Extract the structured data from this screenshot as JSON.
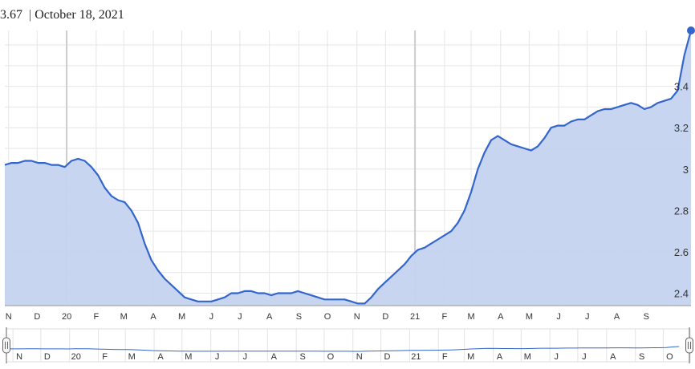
{
  "header": {
    "value_text": "3.67",
    "date_text": "October 18, 2021"
  },
  "colors": {
    "line": "#3366cc",
    "fill": "#c4d3f0",
    "grid": "#e6e6e6",
    "major_grid": "#cccccc"
  },
  "chart_data": {
    "type": "area",
    "x_unit": "weeks",
    "ylim": [
      2.34,
      3.67
    ],
    "y_ticks": [
      2.4,
      2.6,
      2.8,
      3,
      3.2,
      3.4
    ],
    "y_tick_labels": [
      "2.4",
      "2.6",
      "2.8",
      "3",
      "3.2",
      "3.4"
    ],
    "x_tick_labels": [
      "N",
      "D",
      "20",
      "F",
      "M",
      "A",
      "M",
      "J",
      "J",
      "A",
      "S",
      "O",
      "N",
      "D",
      "21",
      "F",
      "M",
      "A",
      "M",
      "J",
      "J",
      "A",
      "S"
    ],
    "navigator_tick_labels": [
      "N",
      "D",
      "20",
      "F",
      "M",
      "A",
      "M",
      "J",
      "J",
      "A",
      "S",
      "O",
      "N",
      "D",
      "21",
      "F",
      "M",
      "A",
      "M",
      "J",
      "J",
      "A",
      "S",
      "O"
    ],
    "x_start": "2019-10-28",
    "x_end": "2021-10-18",
    "series": [
      {
        "points": [
          [
            "2019-10-28",
            3.02
          ],
          [
            "2019-11-04",
            3.03
          ],
          [
            "2019-11-11",
            3.03
          ],
          [
            "2019-11-18",
            3.04
          ],
          [
            "2019-11-25",
            3.04
          ],
          [
            "2019-12-02",
            3.03
          ],
          [
            "2019-12-09",
            3.03
          ],
          [
            "2019-12-16",
            3.02
          ],
          [
            "2019-12-23",
            3.02
          ],
          [
            "2019-12-30",
            3.01
          ],
          [
            "2020-01-06",
            3.04
          ],
          [
            "2020-01-13",
            3.05
          ],
          [
            "2020-01-20",
            3.04
          ],
          [
            "2020-01-27",
            3.01
          ],
          [
            "2020-02-03",
            2.97
          ],
          [
            "2020-02-10",
            2.91
          ],
          [
            "2020-02-17",
            2.87
          ],
          [
            "2020-02-24",
            2.85
          ],
          [
            "2020-03-02",
            2.84
          ],
          [
            "2020-03-09",
            2.8
          ],
          [
            "2020-03-16",
            2.74
          ],
          [
            "2020-03-23",
            2.64
          ],
          [
            "2020-03-30",
            2.56
          ],
          [
            "2020-04-06",
            2.51
          ],
          [
            "2020-04-13",
            2.47
          ],
          [
            "2020-04-20",
            2.44
          ],
          [
            "2020-04-27",
            2.41
          ],
          [
            "2020-05-04",
            2.38
          ],
          [
            "2020-05-11",
            2.37
          ],
          [
            "2020-05-18",
            2.36
          ],
          [
            "2020-05-25",
            2.36
          ],
          [
            "2020-06-01",
            2.36
          ],
          [
            "2020-06-08",
            2.37
          ],
          [
            "2020-06-15",
            2.38
          ],
          [
            "2020-06-22",
            2.4
          ],
          [
            "2020-06-29",
            2.4
          ],
          [
            "2020-07-06",
            2.41
          ],
          [
            "2020-07-13",
            2.41
          ],
          [
            "2020-07-20",
            2.4
          ],
          [
            "2020-07-27",
            2.4
          ],
          [
            "2020-08-03",
            2.39
          ],
          [
            "2020-08-10",
            2.4
          ],
          [
            "2020-08-17",
            2.4
          ],
          [
            "2020-08-24",
            2.4
          ],
          [
            "2020-08-31",
            2.41
          ],
          [
            "2020-09-07",
            2.4
          ],
          [
            "2020-09-14",
            2.39
          ],
          [
            "2020-09-21",
            2.38
          ],
          [
            "2020-09-28",
            2.37
          ],
          [
            "2020-10-05",
            2.37
          ],
          [
            "2020-10-12",
            2.37
          ],
          [
            "2020-10-19",
            2.37
          ],
          [
            "2020-10-26",
            2.36
          ],
          [
            "2020-11-02",
            2.35
          ],
          [
            "2020-11-09",
            2.35
          ],
          [
            "2020-11-16",
            2.38
          ],
          [
            "2020-11-23",
            2.42
          ],
          [
            "2020-11-30",
            2.45
          ],
          [
            "2020-12-07",
            2.48
          ],
          [
            "2020-12-14",
            2.51
          ],
          [
            "2020-12-21",
            2.54
          ],
          [
            "2020-12-28",
            2.58
          ],
          [
            "2021-01-04",
            2.61
          ],
          [
            "2021-01-11",
            2.62
          ],
          [
            "2021-01-18",
            2.64
          ],
          [
            "2021-01-25",
            2.66
          ],
          [
            "2021-02-01",
            2.68
          ],
          [
            "2021-02-08",
            2.7
          ],
          [
            "2021-02-15",
            2.74
          ],
          [
            "2021-02-22",
            2.8
          ],
          [
            "2021-03-01",
            2.89
          ],
          [
            "2021-03-08",
            3.0
          ],
          [
            "2021-03-15",
            3.08
          ],
          [
            "2021-03-22",
            3.14
          ],
          [
            "2021-03-29",
            3.16
          ],
          [
            "2021-04-05",
            3.14
          ],
          [
            "2021-04-12",
            3.12
          ],
          [
            "2021-04-19",
            3.11
          ],
          [
            "2021-04-26",
            3.1
          ],
          [
            "2021-05-03",
            3.09
          ],
          [
            "2021-05-10",
            3.11
          ],
          [
            "2021-05-17",
            3.15
          ],
          [
            "2021-05-24",
            3.2
          ],
          [
            "2021-05-31",
            3.21
          ],
          [
            "2021-06-07",
            3.21
          ],
          [
            "2021-06-14",
            3.23
          ],
          [
            "2021-06-21",
            3.24
          ],
          [
            "2021-06-28",
            3.24
          ],
          [
            "2021-07-05",
            3.26
          ],
          [
            "2021-07-12",
            3.28
          ],
          [
            "2021-07-19",
            3.29
          ],
          [
            "2021-07-26",
            3.29
          ],
          [
            "2021-08-02",
            3.3
          ],
          [
            "2021-08-09",
            3.31
          ],
          [
            "2021-08-16",
            3.32
          ],
          [
            "2021-08-23",
            3.31
          ],
          [
            "2021-08-30",
            3.29
          ],
          [
            "2021-09-06",
            3.3
          ],
          [
            "2021-09-13",
            3.32
          ],
          [
            "2021-09-20",
            3.33
          ],
          [
            "2021-09-27",
            3.34
          ],
          [
            "2021-10-04",
            3.38
          ],
          [
            "2021-10-11",
            3.55
          ],
          [
            "2021-10-18",
            3.67
          ]
        ]
      }
    ]
  }
}
